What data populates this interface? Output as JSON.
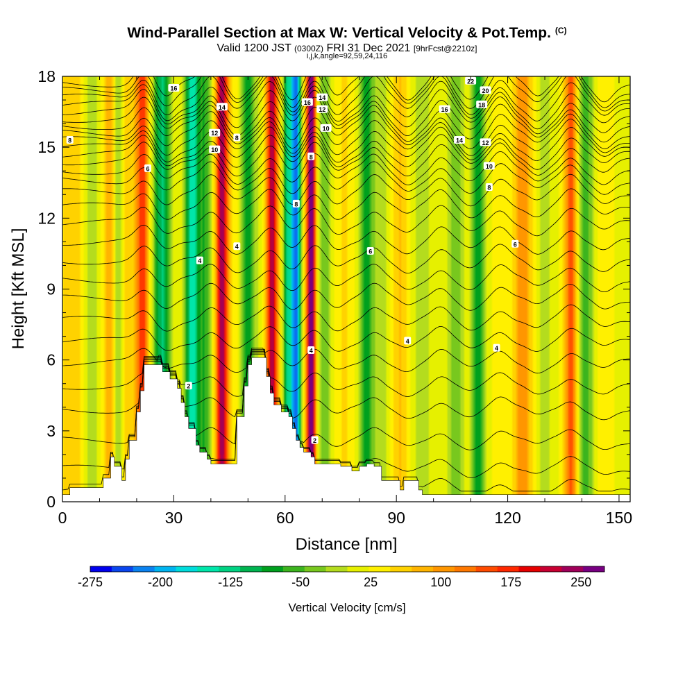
{
  "header": {
    "title": "Wind-Parallel Section at Max W: Vertical Velocity & Pot.Temp.",
    "copyright": "(C)",
    "valid_prefix": "Valid 1200 JST",
    "valid_utc": "(0300Z)",
    "valid_date": "FRI 31 Dec 2021",
    "forecast_info": "[9hrFcst@2210z]",
    "section_params": "i,j,k,angle=92,59,24,116"
  },
  "chart_data": {
    "type": "heatmap",
    "title": "Wind-Parallel Section at Max W: Vertical Velocity & Pot.Temp.",
    "xlabel": "Distance [nm]",
    "ylabel": "Height [Kft MSL]",
    "xlim": [
      0,
      153
    ],
    "ylim": [
      0,
      18
    ],
    "xticks": [
      0,
      30,
      60,
      90,
      120,
      150
    ],
    "yticks": [
      0,
      3,
      6,
      9,
      12,
      15,
      18
    ],
    "colorbar": {
      "label": "Vertical Velocity [cm/s]",
      "range": [
        -275,
        275
      ],
      "tick_values": [
        -275,
        -200,
        -125,
        -50,
        25,
        100,
        175,
        250
      ],
      "tick_labels": [
        "-275",
        "-200",
        "-125",
        "-50",
        "25",
        "100",
        "175",
        "250"
      ],
      "colors": [
        "#0000ee",
        "#0a46ee",
        "#0a82f0",
        "#00b4f0",
        "#00dcdc",
        "#00e6aa",
        "#00d282",
        "#00b450",
        "#00a01e",
        "#3cb41e",
        "#78c81e",
        "#b4dc1e",
        "#e6f000",
        "#fff000",
        "#ffd200",
        "#ffb400",
        "#ff9600",
        "#ff7800",
        "#ff4b00",
        "#ff2800",
        "#e60000",
        "#c80032",
        "#a0005a",
        "#780082"
      ]
    },
    "vertical_velocity_bands": [
      {
        "x": 0,
        "w": 4,
        "v": 30
      },
      {
        "x": 3,
        "w": 3,
        "v": 55
      },
      {
        "x": 8,
        "w": 2,
        "v": -20
      },
      {
        "x": 13,
        "w": 2,
        "v": 90
      },
      {
        "x": 15,
        "w": 1.5,
        "v": -60
      },
      {
        "x": 17,
        "w": 2,
        "v": 60
      },
      {
        "x": 21.5,
        "w": 2,
        "v": 160
      },
      {
        "x": 24.5,
        "w": 2,
        "v": -10
      },
      {
        "x": 27,
        "w": 2,
        "v": -110
      },
      {
        "x": 31,
        "w": 3,
        "v": 20
      },
      {
        "x": 35,
        "w": 2,
        "v": -150
      },
      {
        "x": 38.5,
        "w": 1.5,
        "v": -60
      },
      {
        "x": 43,
        "w": 1.6,
        "v": 240
      },
      {
        "x": 46.5,
        "w": 2,
        "v": 40
      },
      {
        "x": 50,
        "w": 2,
        "v": -90
      },
      {
        "x": 56.5,
        "w": 1.6,
        "v": 220
      },
      {
        "x": 61,
        "w": 1.4,
        "v": -130
      },
      {
        "x": 63,
        "w": 1.2,
        "v": -210
      },
      {
        "x": 67,
        "w": 1.3,
        "v": 270
      },
      {
        "x": 70.5,
        "w": 2,
        "v": -40
      },
      {
        "x": 76,
        "w": 2.5,
        "v": 50
      },
      {
        "x": 82,
        "w": 2,
        "v": -80
      },
      {
        "x": 86,
        "w": 2,
        "v": -10
      },
      {
        "x": 91,
        "w": 2,
        "v": 70
      },
      {
        "x": 97,
        "w": 2,
        "v": -20
      },
      {
        "x": 102,
        "w": 2,
        "v": 20
      },
      {
        "x": 106,
        "w": 2,
        "v": -40
      },
      {
        "x": 112,
        "w": 1.6,
        "v": -90
      },
      {
        "x": 118,
        "w": 2,
        "v": 30
      },
      {
        "x": 124,
        "w": 2.5,
        "v": 110
      },
      {
        "x": 130,
        "w": 2,
        "v": -10
      },
      {
        "x": 137,
        "w": 1.8,
        "v": 140
      },
      {
        "x": 141,
        "w": 2,
        "v": -60
      },
      {
        "x": 146,
        "w": 2,
        "v": 40
      }
    ],
    "terrain": {
      "x": [
        0,
        2,
        9,
        11,
        13,
        14,
        16,
        17,
        18,
        20,
        21,
        22,
        23,
        24,
        27,
        29,
        31,
        32,
        33,
        34,
        36,
        37,
        39,
        40,
        41,
        44,
        47,
        49,
        50,
        51,
        52,
        54,
        55,
        56,
        57,
        59,
        61,
        62,
        63,
        64,
        65,
        66,
        67,
        68,
        70,
        73,
        75,
        78,
        80,
        82,
        84,
        86,
        88,
        90,
        91,
        92,
        95,
        96,
        97,
        100,
        153
      ],
      "y": [
        0.3,
        0.6,
        0.6,
        1.0,
        1.9,
        1.5,
        0.9,
        1.8,
        2.6,
        3.8,
        4.7,
        5.8,
        5.8,
        5.8,
        5.5,
        5.2,
        4.8,
        4.2,
        3.6,
        3.1,
        2.4,
        2.1,
        1.8,
        1.6,
        1.6,
        1.6,
        3.6,
        4.9,
        5.8,
        6.1,
        6.1,
        6.1,
        5.3,
        4.6,
        4.1,
        3.8,
        3.6,
        3.1,
        2.6,
        2.3,
        2.1,
        2.1,
        1.9,
        1.6,
        1.6,
        1.6,
        1.5,
        1.3,
        1.5,
        1.6,
        1.5,
        0.9,
        0.9,
        0.9,
        0.5,
        0.9,
        0.9,
        0.5,
        0.3,
        0.3,
        0.3
      ]
    },
    "theta_contours": {
      "base_heights": [
        0.5,
        1.4,
        2.6,
        3.9,
        4.9,
        5.9,
        6.8,
        7.7,
        8.6,
        9.4,
        10.2,
        11.0,
        11.8,
        12.5,
        13.1,
        13.6,
        14.0,
        14.4,
        14.7,
        15.0,
        15.3,
        15.6,
        15.9,
        16.2,
        16.5,
        16.8,
        17.1,
        17.4,
        17.7
      ],
      "wave_columns": [
        22,
        28,
        40,
        47,
        56,
        62,
        68,
        74,
        84,
        93,
        102,
        110,
        118,
        128,
        137,
        146
      ]
    },
    "contour_labels": [
      {
        "text": "2",
        "x": 34,
        "y": 4.9
      },
      {
        "text": "4",
        "x": 37,
        "y": 10.2
      },
      {
        "text": "4",
        "x": 47,
        "y": 10.8
      },
      {
        "text": "6",
        "x": 23,
        "y": 14.1
      },
      {
        "text": "8",
        "x": 47,
        "y": 15.4
      },
      {
        "text": "10",
        "x": 41,
        "y": 14.9
      },
      {
        "text": "12",
        "x": 41,
        "y": 15.6
      },
      {
        "text": "14",
        "x": 43,
        "y": 16.7
      },
      {
        "text": "16",
        "x": 30,
        "y": 17.5
      },
      {
        "text": "8",
        "x": 2,
        "y": 15.3
      },
      {
        "text": "8",
        "x": 63,
        "y": 12.6
      },
      {
        "text": "8",
        "x": 67,
        "y": 14.6
      },
      {
        "text": "10",
        "x": 71,
        "y": 15.8
      },
      {
        "text": "12",
        "x": 70,
        "y": 16.6
      },
      {
        "text": "14",
        "x": 70,
        "y": 17.1
      },
      {
        "text": "16",
        "x": 66,
        "y": 16.9
      },
      {
        "text": "4",
        "x": 67,
        "y": 6.4
      },
      {
        "text": "2",
        "x": 68,
        "y": 2.6
      },
      {
        "text": "6",
        "x": 83,
        "y": 10.6
      },
      {
        "text": "4",
        "x": 93,
        "y": 6.8
      },
      {
        "text": "4",
        "x": 117,
        "y": 6.5
      },
      {
        "text": "6",
        "x": 122,
        "y": 10.9
      },
      {
        "text": "8",
        "x": 115,
        "y": 13.3
      },
      {
        "text": "10",
        "x": 115,
        "y": 14.2
      },
      {
        "text": "12",
        "x": 114,
        "y": 15.2
      },
      {
        "text": "14",
        "x": 107,
        "y": 15.3
      },
      {
        "text": "16",
        "x": 103,
        "y": 16.6
      },
      {
        "text": "18",
        "x": 113,
        "y": 16.8
      },
      {
        "text": "20",
        "x": 114,
        "y": 17.4
      },
      {
        "text": "22",
        "x": 110,
        "y": 17.8
      }
    ]
  }
}
